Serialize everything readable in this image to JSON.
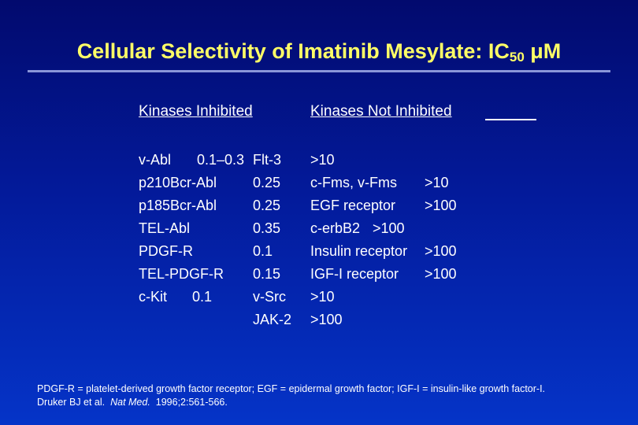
{
  "slide": {
    "title_main": "Cellular Selectivity of Imatinib Mesylate:  IC",
    "title_sub": "50",
    "title_unit": " μM"
  },
  "columns": {
    "inhibited_header": "Kinases Inhibited",
    "not_inhibited_header": "Kinases Not Inhibited"
  },
  "inhibited": [
    {
      "name": "v-Abl",
      "value": "0.1–0.3"
    },
    {
      "name": "p210Bcr-Abl",
      "value": "0.25"
    },
    {
      "name": "p185Bcr-Abl",
      "value": "0.25"
    },
    {
      "name": "TEL-Abl",
      "value": "0.35"
    },
    {
      "name": "PDGF-R",
      "value": "0.1"
    },
    {
      "name": "TEL-PDGF-R",
      "value": "0.15"
    },
    {
      "name": "c-Kit",
      "value": "0.1"
    }
  ],
  "not_inhibited": [
    {
      "name": "Flt-3",
      "value": ">10"
    },
    {
      "name": "c-Fms, v-Fms",
      "value": ">10"
    },
    {
      "name": "EGF receptor",
      "value": ">100"
    },
    {
      "name": "c-erbB2",
      "value": ">100"
    },
    {
      "name": "Insulin receptor",
      "value": ">100"
    },
    {
      "name": "IGF-I receptor",
      "value": ">100"
    },
    {
      "name": "v-Src",
      "value": ">10"
    },
    {
      "name": "JAK-2",
      "value": ">100"
    }
  ],
  "footnote": {
    "abbreviations": "PDGF-R = platelet-derived growth factor receptor; EGF = epidermal growth factor; IGF-I = insulin-like growth factor-I.",
    "citation_authors": "Druker BJ et al.",
    "citation_journal": "Nat Med.",
    "citation_details": "1996;2:561-566."
  }
}
